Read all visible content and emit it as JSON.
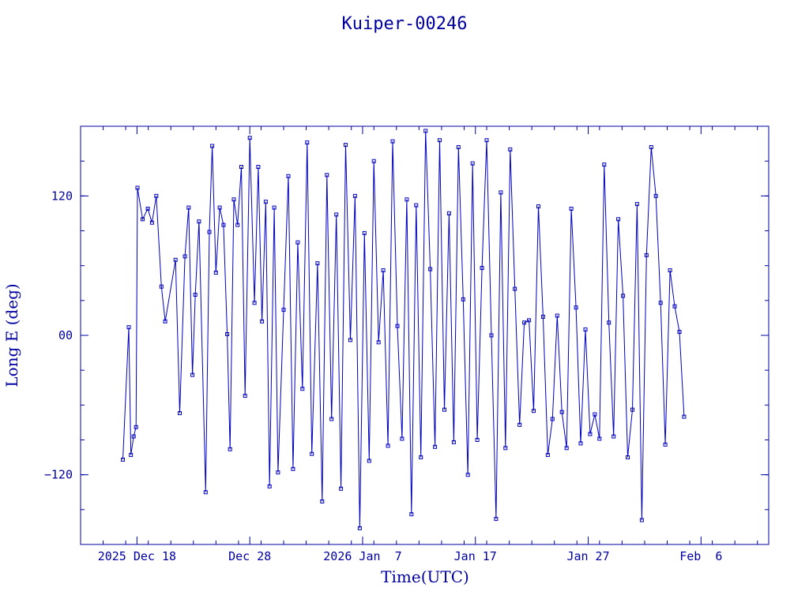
{
  "chart_data": {
    "type": "scatter",
    "title": "Kuiper-00246",
    "xlabel": "Time(UTC)",
    "ylabel": "Long E (deg)",
    "x_unit": "days",
    "xlim": [
      "2025-12-13",
      "2026-02-12"
    ],
    "ylim": [
      -180,
      180
    ],
    "x_ticks": [
      "2025 Dec 18",
      "Dec 28",
      "2026 Jan  7",
      "Jan 17",
      "Jan 27",
      "Feb  6"
    ],
    "y_ticks": [
      "120",
      "00",
      "−120"
    ],
    "x_tick_dates": [
      "2025-12-18",
      "2025-12-28",
      "2026-01-07",
      "2026-01-17",
      "2026-01-27",
      "2026-02-06"
    ],
    "y_tick_values": [
      120,
      0,
      -120
    ],
    "grid": false,
    "connect_points": true,
    "series": [
      {
        "color": "#0000c0",
        "points": [
          [
            "2025-12-16 18:00",
            -107
          ],
          [
            "2025-12-17 06:30",
            7
          ],
          [
            "2025-12-17 11:00",
            -103
          ],
          [
            "2025-12-17 17:00",
            -87
          ],
          [
            "2025-12-17 22:00",
            -79
          ],
          [
            "2025-12-18 01:00",
            127
          ],
          [
            "2025-12-18 12:00",
            100
          ],
          [
            "2025-12-18 23:00",
            109
          ],
          [
            "2025-12-19 08:00",
            97
          ],
          [
            "2025-12-19 17:00",
            120
          ],
          [
            "2025-12-20 04:00",
            42
          ],
          [
            "2025-12-20 12:00",
            12
          ],
          [
            "2025-12-21 10:00",
            65
          ],
          [
            "2025-12-21 19:00",
            -67
          ],
          [
            "2025-12-22 06:00",
            68
          ],
          [
            "2025-12-22 14:00",
            110
          ],
          [
            "2025-12-22 22:00",
            -34
          ],
          [
            "2025-12-23 04:00",
            35
          ],
          [
            "2025-12-23 12:00",
            98
          ],
          [
            "2025-12-24 02:00",
            -135
          ],
          [
            "2025-12-24 10:00",
            89
          ],
          [
            "2025-12-24 16:00",
            163
          ],
          [
            "2025-12-25 00:00",
            54
          ],
          [
            "2025-12-25 08:00",
            110
          ],
          [
            "2025-12-25 16:00",
            95
          ],
          [
            "2025-12-26 00:00",
            1
          ],
          [
            "2025-12-26 06:00",
            -98
          ],
          [
            "2025-12-26 14:00",
            117
          ],
          [
            "2025-12-26 22:00",
            95
          ],
          [
            "2025-12-27 06:00",
            145
          ],
          [
            "2025-12-27 14:00",
            -52
          ],
          [
            "2025-12-28 00:00",
            170
          ],
          [
            "2025-12-28 10:00",
            28
          ],
          [
            "2025-12-28 18:00",
            145
          ],
          [
            "2025-12-29 02:00",
            12
          ],
          [
            "2025-12-29 10:00",
            115
          ],
          [
            "2025-12-29 18:00",
            -130
          ],
          [
            "2025-12-30 04:00",
            110
          ],
          [
            "2025-12-30 12:00",
            -118
          ],
          [
            "2025-12-31 00:00",
            22
          ],
          [
            "2025-12-31 10:00",
            137
          ],
          [
            "2025-12-31 20:00",
            -115
          ],
          [
            "2026-01-01 06:00",
            80
          ],
          [
            "2026-01-01 16:00",
            -46
          ],
          [
            "2026-01-02 02:00",
            166
          ],
          [
            "2026-01-02 12:00",
            -102
          ],
          [
            "2026-01-03 00:00",
            62
          ],
          [
            "2026-01-03 10:00",
            -143
          ],
          [
            "2026-01-03 20:00",
            138
          ],
          [
            "2026-01-04 06:00",
            -72
          ],
          [
            "2026-01-04 16:00",
            104
          ],
          [
            "2026-01-05 02:00",
            -132
          ],
          [
            "2026-01-05 12:00",
            164
          ],
          [
            "2026-01-05 22:00",
            -4
          ],
          [
            "2026-01-06 08:00",
            120
          ],
          [
            "2026-01-06 18:00",
            -166
          ],
          [
            "2026-01-07 04:00",
            88
          ],
          [
            "2026-01-07 14:00",
            -108
          ],
          [
            "2026-01-08 00:00",
            150
          ],
          [
            "2026-01-08 10:00",
            -6
          ],
          [
            "2026-01-08 20:00",
            56
          ],
          [
            "2026-01-09 06:00",
            -95
          ],
          [
            "2026-01-09 16:00",
            167
          ],
          [
            "2026-01-10 02:00",
            8
          ],
          [
            "2026-01-10 12:00",
            -89
          ],
          [
            "2026-01-10 22:00",
            117
          ],
          [
            "2026-01-11 08:00",
            -154
          ],
          [
            "2026-01-11 18:00",
            112
          ],
          [
            "2026-01-12 04:00",
            -105
          ],
          [
            "2026-01-12 14:00",
            176
          ],
          [
            "2026-01-13 00:00",
            57
          ],
          [
            "2026-01-13 10:00",
            -96
          ],
          [
            "2026-01-13 20:00",
            168
          ],
          [
            "2026-01-14 06:00",
            -64
          ],
          [
            "2026-01-14 16:00",
            105
          ],
          [
            "2026-01-15 02:00",
            -92
          ],
          [
            "2026-01-15 12:00",
            162
          ],
          [
            "2026-01-15 22:00",
            31
          ],
          [
            "2026-01-16 08:00",
            -120
          ],
          [
            "2026-01-16 18:00",
            148
          ],
          [
            "2026-01-17 04:00",
            -90
          ],
          [
            "2026-01-17 14:00",
            58
          ],
          [
            "2026-01-18 00:00",
            168
          ],
          [
            "2026-01-18 10:00",
            0
          ],
          [
            "2026-01-18 20:00",
            -158
          ],
          [
            "2026-01-19 06:00",
            123
          ],
          [
            "2026-01-19 16:00",
            -97
          ],
          [
            "2026-01-20 02:00",
            160
          ],
          [
            "2026-01-20 12:00",
            40
          ],
          [
            "2026-01-20 22:00",
            -77
          ],
          [
            "2026-01-21 08:00",
            11
          ],
          [
            "2026-01-21 18:00",
            13
          ],
          [
            "2026-01-22 04:00",
            -65
          ],
          [
            "2026-01-22 14:00",
            111
          ],
          [
            "2026-01-23 00:00",
            16
          ],
          [
            "2026-01-23 10:00",
            -103
          ],
          [
            "2026-01-23 20:00",
            -72
          ],
          [
            "2026-01-24 06:00",
            17
          ],
          [
            "2026-01-24 16:00",
            -66
          ],
          [
            "2026-01-25 02:00",
            -97
          ],
          [
            "2026-01-25 12:00",
            109
          ],
          [
            "2026-01-25 22:00",
            24
          ],
          [
            "2026-01-26 08:00",
            -93
          ],
          [
            "2026-01-26 18:00",
            5
          ],
          [
            "2026-01-27 04:00",
            -85
          ],
          [
            "2026-01-27 14:00",
            -68
          ],
          [
            "2026-01-28 00:00",
            -89
          ],
          [
            "2026-01-28 10:00",
            147
          ],
          [
            "2026-01-28 20:00",
            11
          ],
          [
            "2026-01-29 06:00",
            -87
          ],
          [
            "2026-01-29 16:00",
            100
          ],
          [
            "2026-01-30 02:00",
            34
          ],
          [
            "2026-01-30 12:00",
            -105
          ],
          [
            "2026-01-30 22:00",
            -64
          ],
          [
            "2026-01-31 08:00",
            113
          ],
          [
            "2026-01-31 18:00",
            -159
          ],
          [
            "2026-02-01 04:00",
            69
          ],
          [
            "2026-02-01 14:00",
            162
          ],
          [
            "2026-02-02 00:00",
            120
          ],
          [
            "2026-02-02 10:00",
            28
          ],
          [
            "2026-02-02 20:00",
            -94
          ],
          [
            "2026-02-03 06:00",
            56
          ],
          [
            "2026-02-03 16:00",
            25
          ],
          [
            "2026-02-04 02:00",
            3
          ],
          [
            "2026-02-04 12:00",
            -70
          ]
        ]
      }
    ]
  }
}
